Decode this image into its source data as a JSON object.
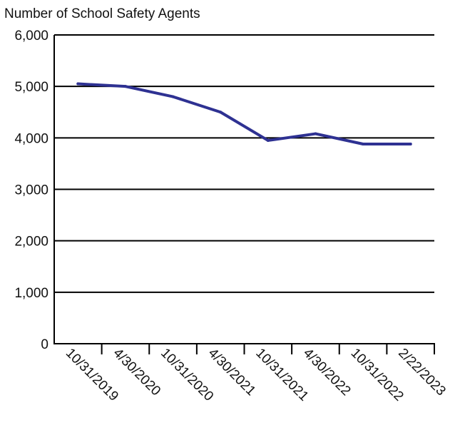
{
  "chart_data": {
    "type": "line",
    "title": "",
    "ylabel": "Number of School Safety Agents",
    "xlabel": "",
    "categories": [
      "10/31/2019",
      "4/30/2020",
      "10/31/2020",
      "4/30/2021",
      "10/31/2021",
      "4/30/2022",
      "10/31/2022",
      "2/22/2023"
    ],
    "y_ticks": [
      "0",
      "1,000",
      "2,000",
      "3,000",
      "4,000",
      "5,000",
      "6,000"
    ],
    "ylim": [
      0,
      6000
    ],
    "grid": "horizontal",
    "series": [
      {
        "name": "",
        "color": "#2e3192",
        "points": [
          {
            "x": "10/31/2019",
            "y": 5050
          },
          {
            "x": "4/30/2020",
            "y": 5000
          },
          {
            "x": "10/31/2020",
            "y": 4800
          },
          {
            "x": "4/30/2021",
            "y": 4500
          },
          {
            "x": "10/31/2021",
            "y": 3950
          },
          {
            "x": "4/30/2022",
            "y": 4080
          },
          {
            "x": "10/31/2022",
            "y": 3880
          },
          {
            "x": "2/22/2023",
            "y": 3880
          }
        ]
      }
    ]
  }
}
